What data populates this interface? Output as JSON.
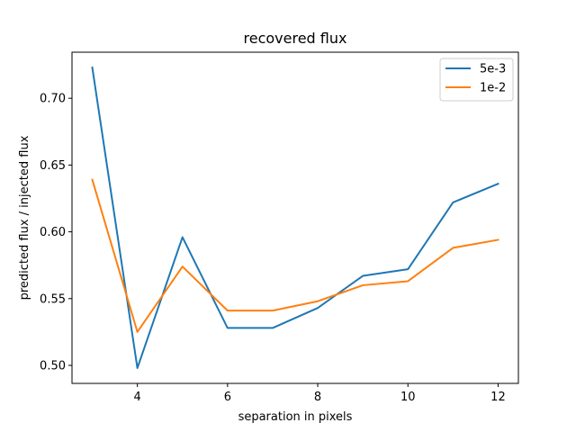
{
  "chart_data": {
    "type": "line",
    "title": "recovered flux",
    "xlabel": "separation in pixels",
    "ylabel": "predicted flux / injected flux",
    "x": [
      3,
      4,
      5,
      6,
      7,
      8,
      9,
      10,
      11,
      12
    ],
    "xlim": [
      2.55,
      12.45
    ],
    "ylim": [
      0.4865,
      0.7345
    ],
    "xticks": [
      4,
      6,
      8,
      10,
      12
    ],
    "yticks": [
      0.5,
      0.55,
      0.6,
      0.65,
      0.7
    ],
    "ytick_labels": [
      "0.50",
      "0.55",
      "0.60",
      "0.65",
      "0.70"
    ],
    "grid": false,
    "legend_position": "top-right",
    "series": [
      {
        "name": "5e-3",
        "color": "#1f77b4",
        "values": [
          0.723,
          0.498,
          0.596,
          0.528,
          0.528,
          0.543,
          0.567,
          0.572,
          0.622,
          0.636
        ]
      },
      {
        "name": "1e-2",
        "color": "#ff7f0e",
        "values": [
          0.639,
          0.525,
          0.574,
          0.541,
          0.541,
          0.548,
          0.56,
          0.563,
          0.588,
          0.594
        ]
      }
    ]
  }
}
